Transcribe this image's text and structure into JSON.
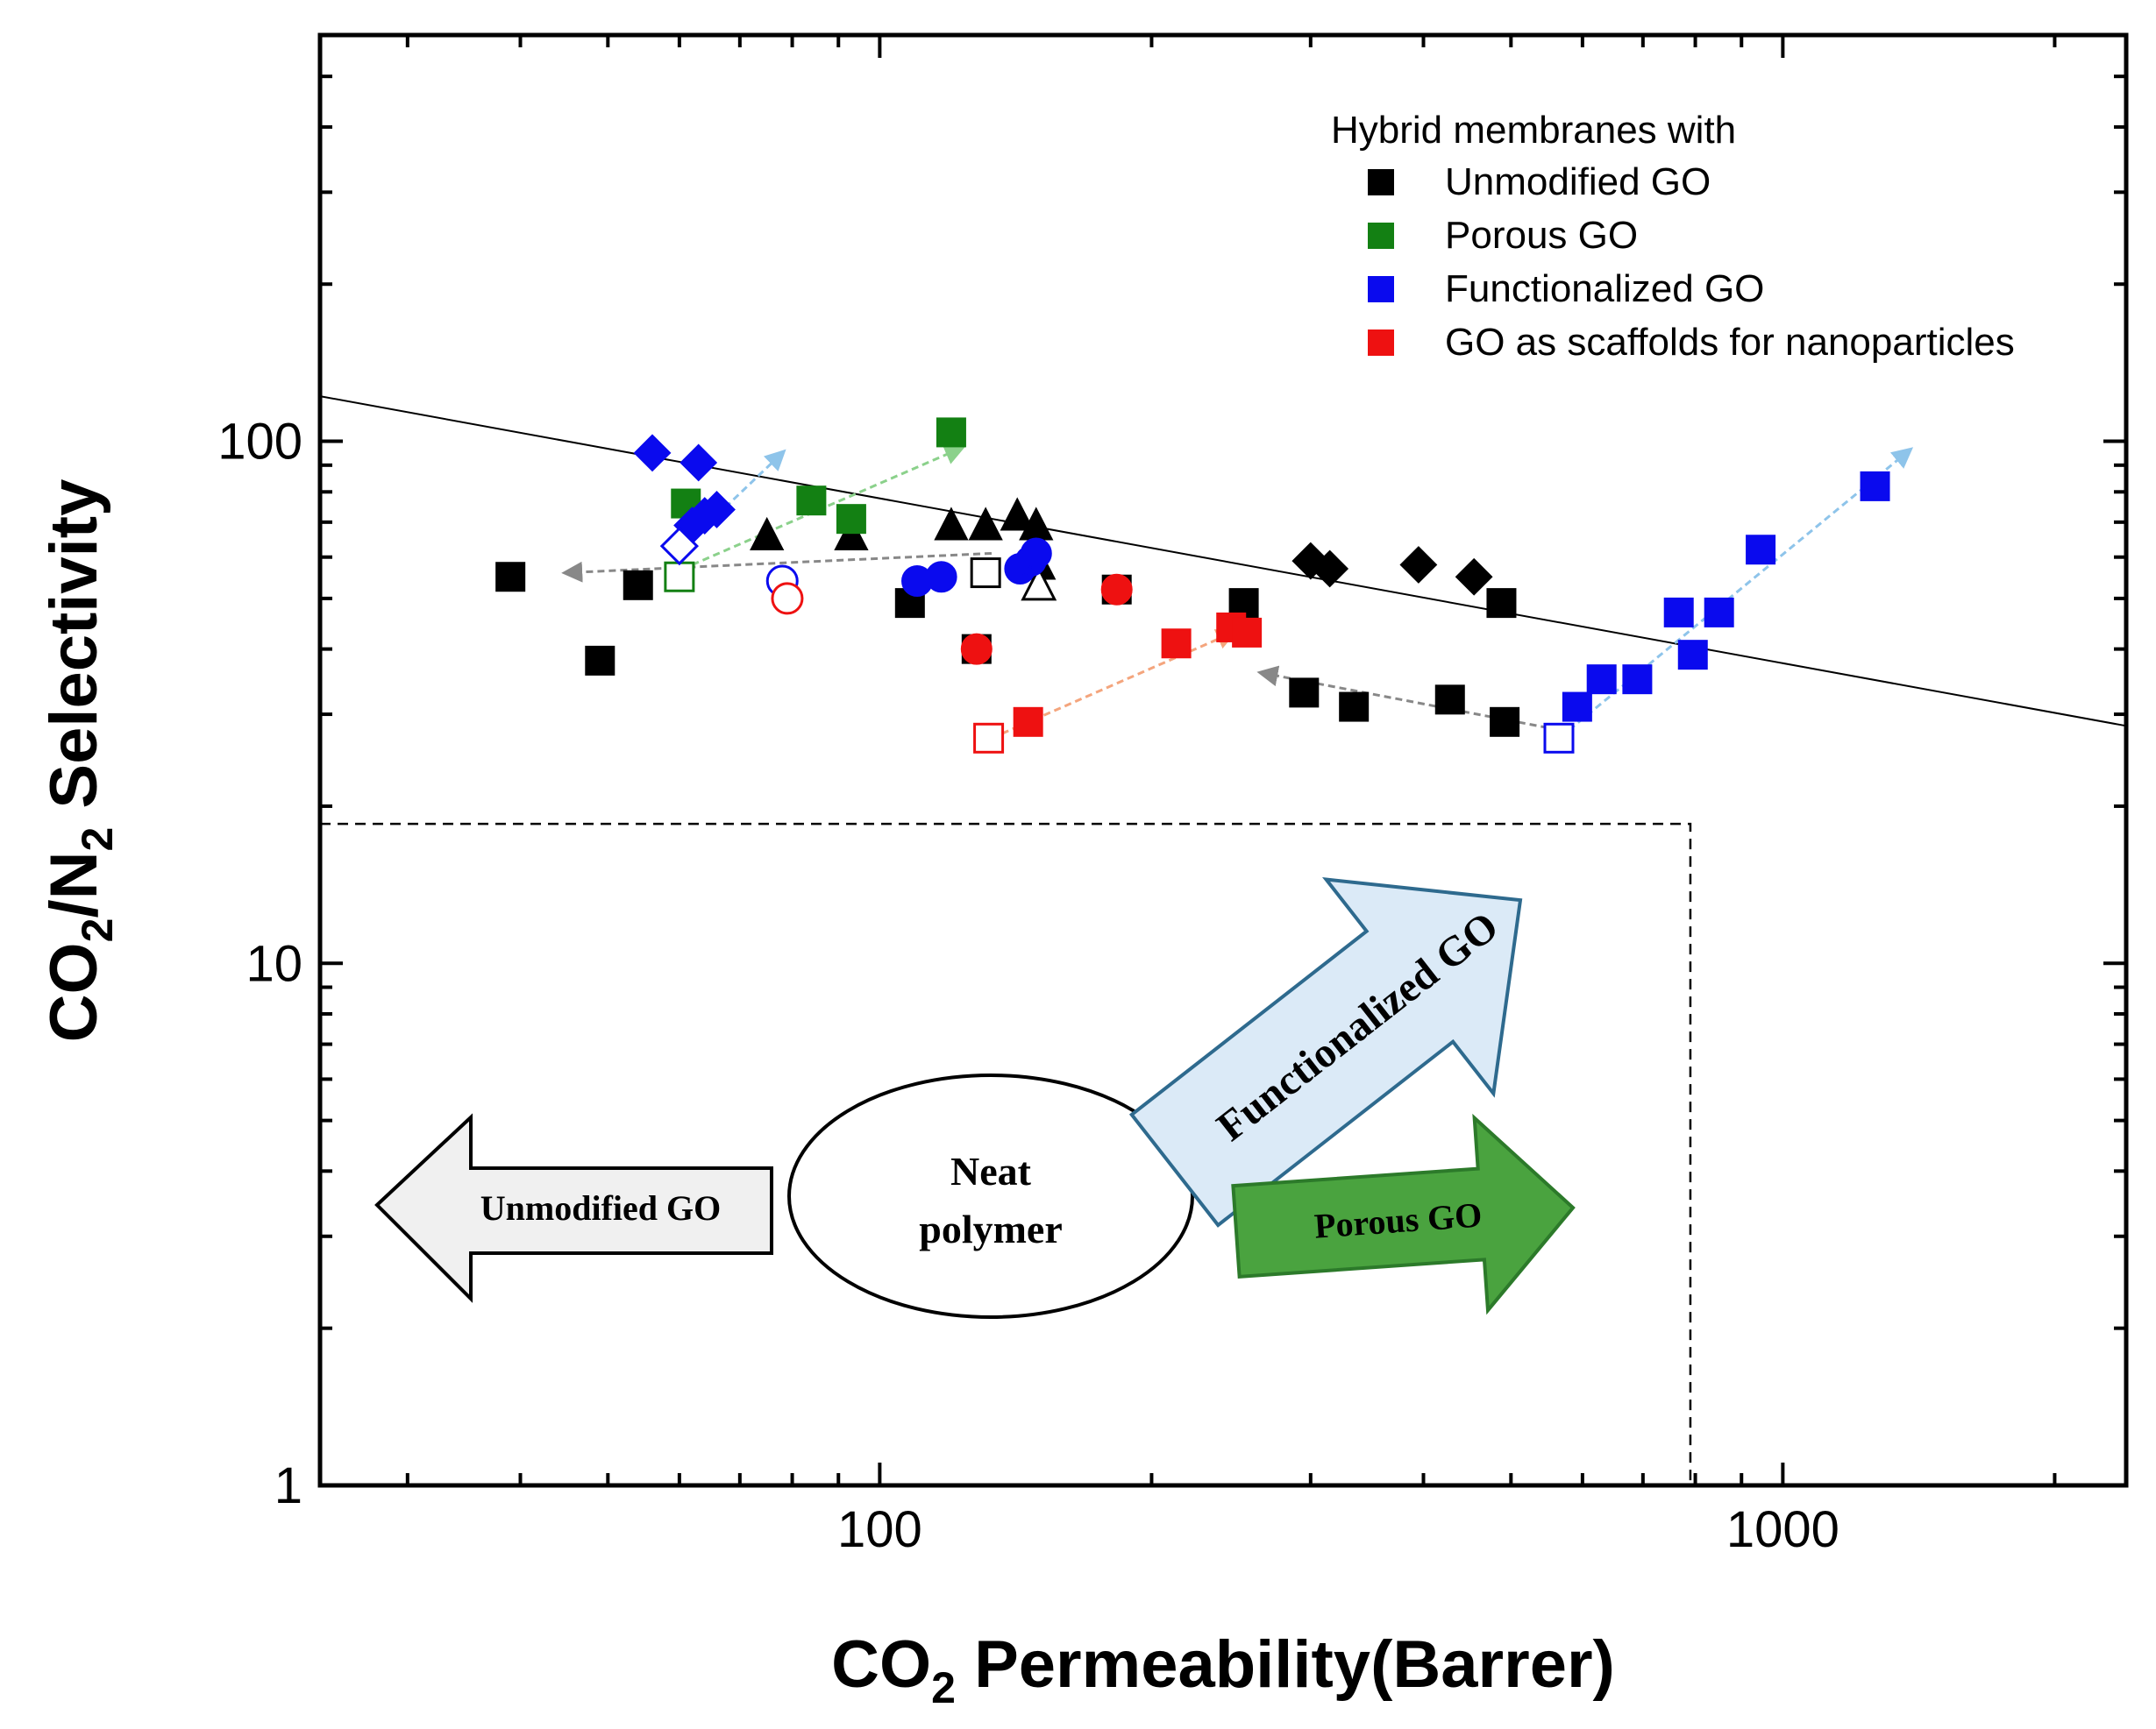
{
  "chart_data": {
    "type": "scatter",
    "title": "",
    "xlabel": {
      "main": "CO",
      "sub": "2",
      "rest": " Permeability(Barrer)"
    },
    "ylabel": {
      "p1": "CO",
      "s1": "2",
      "p2": "/N",
      "s2": "2",
      "p3": " Selectivity"
    },
    "xscale": "log",
    "yscale": "log",
    "xlim": [
      24,
      2400
    ],
    "ylim": [
      1,
      600
    ],
    "x_tick_labels": [
      {
        "value": 100,
        "text": "100"
      },
      {
        "value": 1000,
        "text": "1000"
      }
    ],
    "y_tick_labels": [
      {
        "value": 1,
        "text": "1"
      },
      {
        "value": 10,
        "text": "10"
      },
      {
        "value": 100,
        "text": "100"
      }
    ],
    "upper_bound_line": {
      "x": [
        24,
        2400
      ],
      "y": [
        122,
        28.5
      ],
      "color": "#000000"
    },
    "dashed_region": {
      "x_max": 790,
      "y_max": 18.5
    },
    "colors": {
      "unmodified": "#000000",
      "porous": "#138013",
      "functionalized": "#0a0aee",
      "scaffold": "#ee1111",
      "light_blue": "#8ec4ea",
      "light_green": "#8bd18b",
      "light_orange": "#f4a57d",
      "gray": "#888888"
    },
    "legend": {
      "title": "Hybrid membranes with",
      "position": "top-right",
      "items": [
        {
          "label": "Unmodified GO",
          "color": "#000000"
        },
        {
          "label": "Porous GO",
          "color": "#138013"
        },
        {
          "label": "Functionalized GO",
          "color": "#0a0aee"
        },
        {
          "label": "GO as scaffolds for nanoparticles",
          "color": "#ee1111"
        }
      ]
    },
    "series": [
      {
        "name": "Unmodified GO (squares)",
        "marker": "square",
        "color": "#000000",
        "filled": true,
        "points": [
          [
            39,
            55
          ],
          [
            49,
            38
          ],
          [
            54,
            53
          ],
          [
            108,
            49
          ],
          [
            128,
            40
          ],
          [
            183,
            52
          ],
          [
            253,
            49
          ],
          [
            295,
            33
          ],
          [
            335,
            31
          ],
          [
            428,
            32
          ],
          [
            488,
            49
          ],
          [
            492,
            29
          ]
        ]
      },
      {
        "name": "Unmodified GO (triangles)",
        "marker": "triangle",
        "color": "#000000",
        "filled": true,
        "points": [
          [
            75,
            66
          ],
          [
            93,
            66
          ],
          [
            120,
            69
          ],
          [
            131,
            69
          ],
          [
            142,
            72
          ],
          [
            149,
            69
          ],
          [
            150,
            58
          ]
        ]
      },
      {
        "name": "Unmodified GO (diamonds)",
        "marker": "diamond",
        "color": "#000000",
        "filled": true,
        "points": [
          [
            300,
            59
          ],
          [
            315,
            57
          ],
          [
            395,
            58
          ],
          [
            455,
            55
          ]
        ]
      },
      {
        "name": "Unmodified GO (open)",
        "marker": "square",
        "color": "#000000",
        "filled": false,
        "points": [
          [
            131,
            56
          ]
        ]
      },
      {
        "name": "Unmodified GO (open triangle)",
        "marker": "triangle",
        "color": "#000000",
        "filled": false,
        "points": [
          [
            150,
            53
          ]
        ]
      },
      {
        "name": "Porous GO",
        "marker": "square",
        "color": "#138013",
        "filled": true,
        "points": [
          [
            61,
            76
          ],
          [
            84,
            77
          ],
          [
            93,
            71
          ],
          [
            120,
            104
          ]
        ]
      },
      {
        "name": "Porous GO (open)",
        "marker": "square",
        "color": "#138013",
        "filled": false,
        "points": [
          [
            60,
            55
          ]
        ]
      },
      {
        "name": "Functionalized GO (diamonds)",
        "marker": "diamond",
        "color": "#0a0aee",
        "filled": true,
        "points": [
          [
            56,
            95
          ],
          [
            63,
            91
          ],
          [
            62,
            69
          ],
          [
            64,
            72
          ],
          [
            66,
            74
          ]
        ]
      },
      {
        "name": "Functionalized GO (open diamond)",
        "marker": "diamond",
        "color": "#0a0aee",
        "filled": false,
        "points": [
          [
            60,
            63
          ]
        ]
      },
      {
        "name": "Functionalized GO (circles)",
        "marker": "circle",
        "color": "#0a0aee",
        "filled": true,
        "points": [
          [
            110,
            54
          ],
          [
            117,
            55
          ],
          [
            143,
            57
          ],
          [
            147,
            59
          ],
          [
            149,
            61
          ]
        ]
      },
      {
        "name": "Functionalized GO (open circle)",
        "marker": "circle",
        "color": "#0a0aee",
        "filled": false,
        "points": [
          [
            78,
            54
          ]
        ]
      },
      {
        "name": "Functionalized GO (squares)",
        "marker": "square",
        "color": "#0a0aee",
        "filled": true,
        "points": [
          [
            592,
            31
          ],
          [
            630,
            35
          ],
          [
            690,
            35
          ],
          [
            767,
            47
          ],
          [
            795,
            39
          ],
          [
            850,
            47
          ],
          [
            945,
            62
          ],
          [
            1265,
            82
          ]
        ]
      },
      {
        "name": "Functionalized GO (open square)",
        "marker": "square",
        "color": "#0a0aee",
        "filled": false,
        "points": [
          [
            565,
            27
          ]
        ]
      },
      {
        "name": "GO as scaffolds (squares)",
        "marker": "square",
        "color": "#ee1111",
        "filled": true,
        "points": [
          [
            146,
            29
          ],
          [
            213,
            41
          ],
          [
            245,
            44
          ],
          [
            255,
            43
          ]
        ]
      },
      {
        "name": "GO as scaffolds (circles)",
        "marker": "circle",
        "color": "#ee1111",
        "filled": true,
        "points": [
          [
            128,
            40
          ],
          [
            183,
            52
          ]
        ]
      },
      {
        "name": "GO as scaffolds (open square)",
        "marker": "square",
        "color": "#ee1111",
        "filled": false,
        "points": [
          [
            132,
            27
          ]
        ]
      },
      {
        "name": "GO as scaffolds (open circle)",
        "marker": "circle",
        "color": "#ee1111",
        "filled": false,
        "points": [
          [
            79,
            50
          ]
        ]
      }
    ],
    "trend_arrows": [
      {
        "from": [
          62,
          65
        ],
        "to": [
          78,
          95
        ],
        "color": "#8ec4ea"
      },
      {
        "from": [
          62,
          58
        ],
        "to": [
          123,
          97
        ],
        "color": "#8bd18b"
      },
      {
        "from": [
          133,
          61
        ],
        "to": [
          45,
          56
        ],
        "color": "#888888"
      },
      {
        "from": [
          133,
          27
        ],
        "to": [
          246,
          43
        ],
        "color": "#f4a57d"
      },
      {
        "from": [
          565,
          28
        ],
        "to": [
          265,
          36
        ],
        "color": "#888888"
      },
      {
        "from": [
          580,
          28
        ],
        "to": [
          1380,
          96
        ],
        "color": "#8ec4ea"
      }
    ],
    "annotations": {
      "neat_polymer": {
        "line1": "Neat",
        "line2": "polymer"
      },
      "unmodified_arrow": {
        "label": "Unmodified GO",
        "fill": "#f0f0f0",
        "stroke": "#000000"
      },
      "functionalized_arrow": {
        "label": "Functionalized GO",
        "fill": "#dbeaf7",
        "stroke": "#2e6a8e"
      },
      "porous_arrow": {
        "label": "Porous GO",
        "fill": "#4aa33f",
        "stroke": "#2c7a2a"
      }
    }
  }
}
